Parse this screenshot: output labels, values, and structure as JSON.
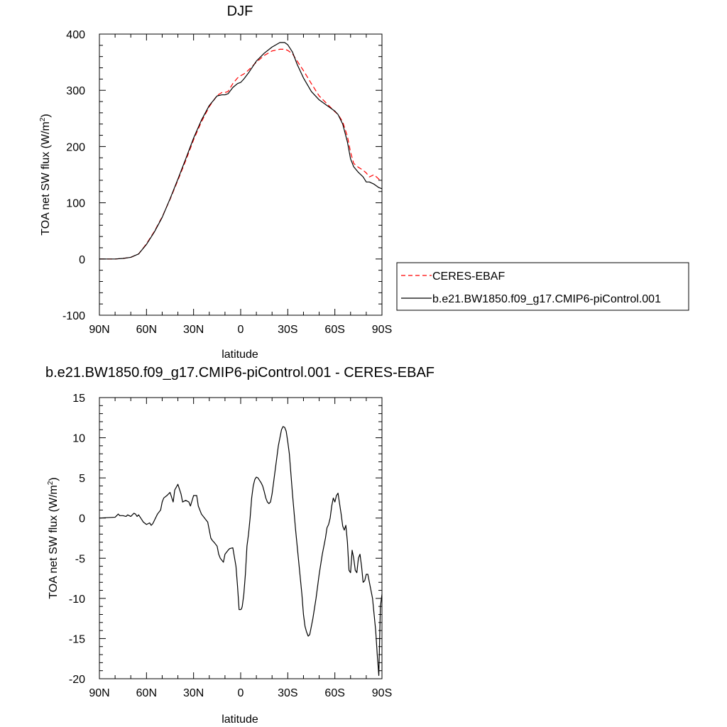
{
  "chart_data": [
    {
      "type": "line",
      "title": "DJF",
      "xlabel": "latitude",
      "ylabel": "TOA net SW flux (W/m",
      "ylabel_sup": "2",
      "ylabel_end": ")",
      "xlim": [
        -90,
        90
      ],
      "ylim": [
        -100,
        400
      ],
      "xticks": [
        -90,
        -60,
        -30,
        0,
        30,
        60,
        90
      ],
      "xtick_labels": [
        "90N",
        "60N",
        "30N",
        "0",
        "30S",
        "60S",
        "90S"
      ],
      "yticks": [
        -100,
        0,
        100,
        200,
        300,
        400
      ],
      "ytick_labels": [
        "-100",
        "0",
        "100",
        "200",
        "300",
        "400"
      ],
      "legend_position": "right",
      "series": [
        {
          "name": "CERES-EBAF",
          "color": "#ff0000",
          "style": "dashed",
          "x": [
            -90,
            -80,
            -75,
            -70,
            -65,
            -60,
            -55,
            -50,
            -45,
            -40,
            -35,
            -30,
            -25,
            -20,
            -15,
            -12,
            -10,
            -8,
            -5,
            -2,
            0,
            2,
            5,
            10,
            15,
            20,
            25,
            28,
            30,
            33,
            36,
            40,
            45,
            50,
            55,
            60,
            62,
            65,
            68,
            70,
            72,
            75,
            78,
            80,
            82,
            85,
            88,
            90
          ],
          "y": [
            0,
            0,
            1,
            3,
            9,
            27,
            49,
            75,
            106,
            140,
            175,
            212,
            244,
            271,
            291,
            296,
            296,
            298,
            312,
            322,
            326,
            329,
            336,
            350,
            362,
            370,
            373,
            373,
            371,
            365,
            352,
            335,
            312,
            290,
            276,
            262,
            257,
            244,
            218,
            190,
            170,
            163,
            158,
            153,
            146,
            150,
            142,
            138
          ]
        },
        {
          "name": "b.e21.BW1850.f09_g17.CMIP6-piControl.001",
          "color": "#000000",
          "style": "solid",
          "x": [
            -90,
            -80,
            -75,
            -70,
            -65,
            -60,
            -55,
            -50,
            -45,
            -40,
            -35,
            -30,
            -25,
            -20,
            -15,
            -12,
            -10,
            -8,
            -5,
            -2,
            0,
            2,
            5,
            10,
            15,
            20,
            25,
            28,
            30,
            33,
            36,
            40,
            45,
            50,
            55,
            60,
            62,
            65,
            68,
            70,
            72,
            75,
            78,
            80,
            82,
            85,
            88,
            90
          ],
          "y": [
            0,
            0,
            1,
            3,
            9,
            26,
            48,
            74,
            107,
            142,
            178,
            215,
            247,
            273,
            290,
            292,
            292,
            294,
            305,
            312,
            314,
            320,
            331,
            352,
            366,
            377,
            385,
            385,
            381,
            368,
            346,
            322,
            298,
            283,
            273,
            263,
            257,
            240,
            208,
            178,
            164,
            154,
            146,
            137,
            137,
            133,
            127,
            125
          ]
        }
      ]
    },
    {
      "type": "line",
      "title": "b.e21.BW1850.f09_g17.CMIP6-piControl.001 - CERES-EBAF",
      "xlabel": "latitude",
      "ylabel": "TOA net SW flux (W/m",
      "ylabel_sup": "2",
      "ylabel_end": ")",
      "xlim": [
        -90,
        90
      ],
      "ylim": [
        -20,
        15
      ],
      "xticks": [
        -90,
        -60,
        -30,
        0,
        30,
        60,
        90
      ],
      "xtick_labels": [
        "90N",
        "60N",
        "30N",
        "0",
        "30S",
        "60S",
        "90S"
      ],
      "yticks": [
        -20,
        -15,
        -10,
        -5,
        0,
        5,
        10,
        15
      ],
      "ytick_labels": [
        "-20",
        "-15",
        "-10",
        "-5",
        "0",
        "5",
        "10",
        "15"
      ],
      "series": [
        {
          "name": "",
          "color": "#000000",
          "style": "solid",
          "x": [
            -90,
            -80,
            -78,
            -77,
            -75,
            -73,
            -72,
            -70,
            -68,
            -67,
            -66,
            -65,
            -63,
            -62,
            -60,
            -58,
            -57,
            -56,
            -55,
            -53,
            -51,
            -50,
            -49,
            -47,
            -45,
            -43,
            -42,
            -40,
            -38,
            -37,
            -35,
            -33,
            -32,
            -30,
            -28,
            -27,
            -25,
            -23,
            -21,
            -20,
            -19,
            -18,
            -17,
            -15,
            -14,
            -13,
            -11,
            -10,
            -8,
            -7,
            -5,
            -3,
            -2,
            -1,
            0,
            0.5,
            1,
            2,
            3,
            4,
            5,
            6,
            7,
            8,
            9,
            10,
            11,
            12,
            13,
            14,
            15,
            16,
            17,
            18,
            19,
            20,
            22,
            24,
            26,
            27,
            28,
            29,
            30,
            31,
            32,
            33,
            35,
            37,
            39,
            40,
            41,
            42,
            43,
            44,
            45,
            46,
            48,
            50,
            52,
            54,
            55,
            56,
            57,
            58,
            59,
            60,
            61,
            62,
            63,
            64,
            65,
            66,
            67,
            68,
            69,
            70,
            71,
            72,
            73,
            74,
            75,
            76,
            77,
            78,
            79,
            80,
            81,
            82,
            83,
            84,
            85,
            86,
            87,
            88,
            89,
            90
          ],
          "y": [
            0.0,
            0.1,
            0.5,
            0.3,
            0.3,
            0.2,
            0.4,
            0.2,
            0.6,
            0.5,
            0.2,
            0.4,
            -0.2,
            -0.5,
            -0.8,
            -0.6,
            -0.9,
            -0.7,
            -0.3,
            0.5,
            1.0,
            2.0,
            2.5,
            2.8,
            3.2,
            2.0,
            3.5,
            4.2,
            3.0,
            2.0,
            2.2,
            2.0,
            1.5,
            2.8,
            2.8,
            1.5,
            0.5,
            0.0,
            -0.5,
            -1.5,
            -2.5,
            -2.8,
            -3.0,
            -3.5,
            -4.5,
            -5.0,
            -5.5,
            -4.5,
            -4.0,
            -3.8,
            -3.7,
            -6.0,
            -8.5,
            -11.4,
            -11.4,
            -11.3,
            -11.0,
            -9.5,
            -7.0,
            -3.5,
            -2.0,
            0.0,
            2.5,
            4.0,
            4.8,
            5.1,
            5.0,
            4.7,
            4.4,
            4.0,
            3.3,
            2.5,
            2.0,
            1.8,
            2.0,
            3.0,
            6.0,
            9.0,
            11.0,
            11.4,
            11.3,
            10.8,
            9.5,
            8.0,
            5.5,
            3.0,
            -1.5,
            -5.5,
            -9.5,
            -12.0,
            -13.5,
            -14.2,
            -14.7,
            -14.5,
            -13.5,
            -12.5,
            -10.0,
            -7.0,
            -4.5,
            -2.5,
            -1.2,
            -0.8,
            0.0,
            1.5,
            2.5,
            2.0,
            2.8,
            3.1,
            1.8,
            0.5,
            -1.0,
            -1.5,
            -0.9,
            -3.0,
            -6.5,
            -6.8,
            -4.0,
            -5.0,
            -6.5,
            -6.8,
            -5.0,
            -4.5,
            -6.0,
            -8.0,
            -7.8,
            -7.0,
            -7.0,
            -8.0,
            -9.0,
            -10.0,
            -12.0,
            -14.0,
            -17.0,
            -19.6,
            -11.0,
            -9.5
          ]
        }
      ]
    }
  ]
}
